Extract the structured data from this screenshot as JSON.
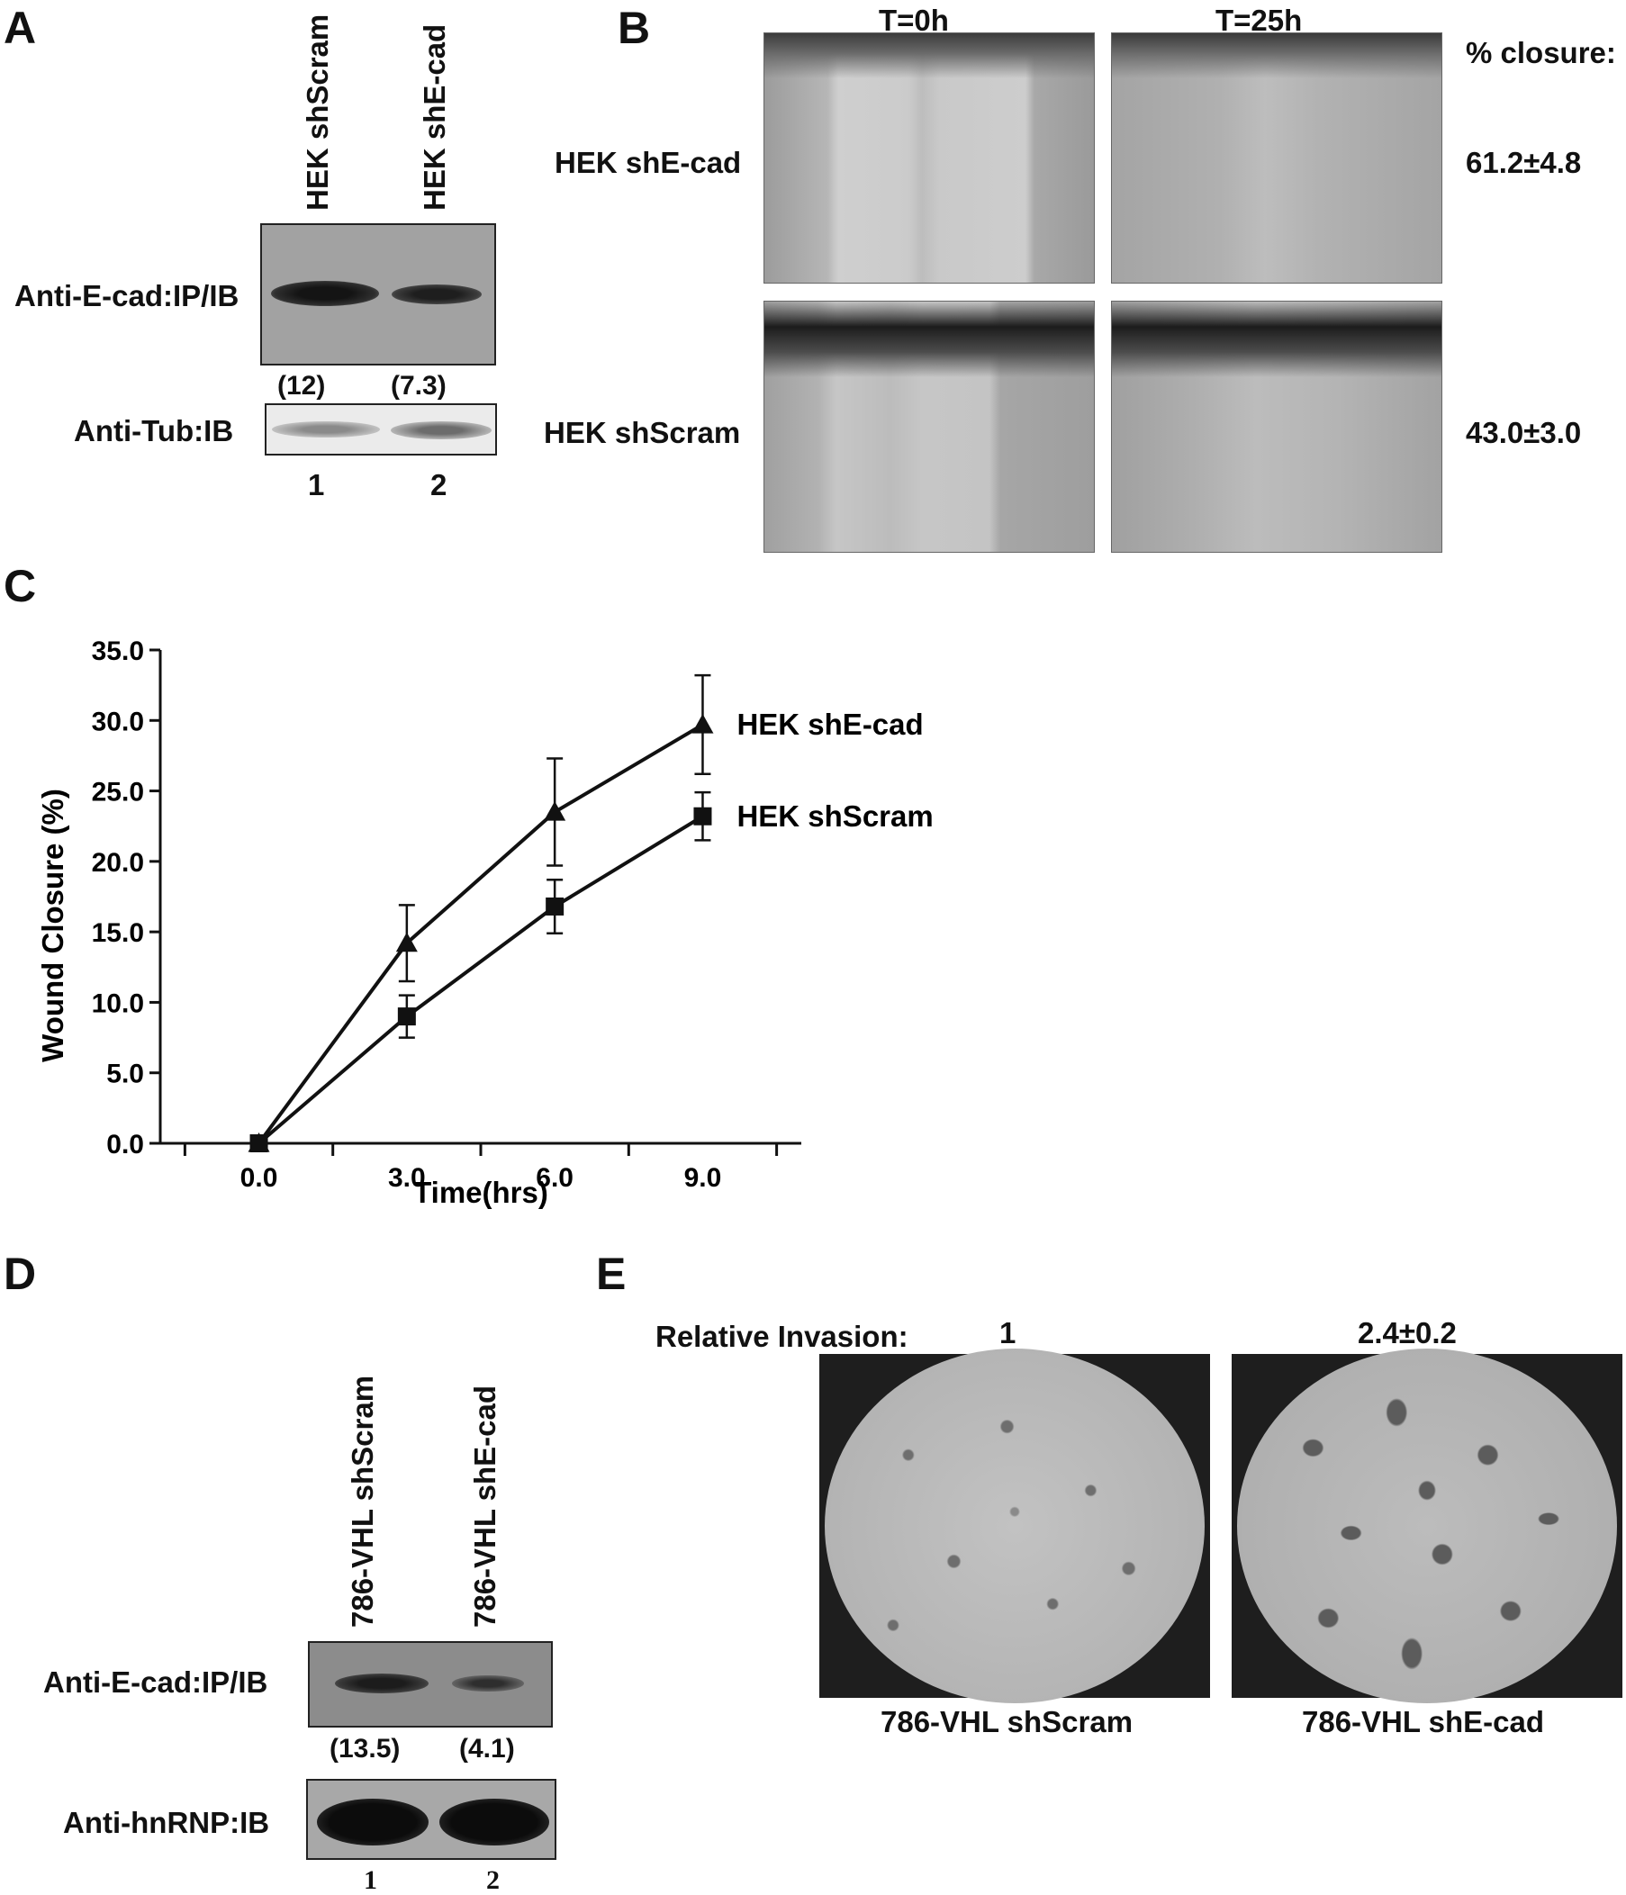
{
  "panels": {
    "a": "A",
    "b": "B",
    "c": "C",
    "d": "D",
    "e": "E"
  },
  "panel_a": {
    "lanes": [
      "HEK shScram",
      "HEK shE-cad"
    ],
    "blot1_label": "Anti-E-cad:IP/IB",
    "quant": [
      "(12)",
      "(7.3)"
    ],
    "blot2_label": "Anti-Tub:IB",
    "lane_numbers": [
      "1",
      "2"
    ]
  },
  "panel_b": {
    "time_headers": [
      "T=0h",
      "T=25h"
    ],
    "closure_header": "% closure:",
    "rows": [
      {
        "label": "HEK shE-cad",
        "closure": "61.2±4.8"
      },
      {
        "label": "HEK shScram",
        "closure": "43.0±3.0"
      }
    ]
  },
  "chart_data": {
    "type": "line",
    "xlabel": "Time(hrs)",
    "ylabel": "Wound Closure (%)",
    "x": [
      0.0,
      3.0,
      6.0,
      9.0
    ],
    "x_tick_labels": [
      "0.0",
      "3.0",
      "6.0",
      "9.0"
    ],
    "xlim": [
      -2.0,
      11.0
    ],
    "ylim": [
      0,
      35
    ],
    "y_ticks": [
      0,
      5,
      10,
      15,
      20,
      25,
      30,
      35
    ],
    "y_tick_labels": [
      "0.0",
      "5.0",
      "10.0",
      "15.0",
      "20.0",
      "25.0",
      "30.0",
      "35.0"
    ],
    "grid": false,
    "legend": "direct-labels-right",
    "series": [
      {
        "name": "HEK shE-cad",
        "marker": "triangle",
        "values": [
          0.0,
          14.2,
          23.5,
          29.7
        ],
        "errors": [
          0.0,
          2.7,
          3.8,
          3.5
        ]
      },
      {
        "name": "HEK shScram",
        "marker": "square",
        "values": [
          0.0,
          9.0,
          16.8,
          23.2
        ],
        "errors": [
          0.0,
          1.5,
          1.9,
          1.7
        ]
      }
    ]
  },
  "panel_d": {
    "lanes": [
      "786-VHL shScram",
      "786-VHL shE-cad"
    ],
    "blot1_label": "Anti-E-cad:IP/IB",
    "quant": [
      "(13.5)",
      "(4.1)"
    ],
    "blot2_label": "Anti-hnRNP:IB",
    "lane_numbers": [
      "1",
      "2"
    ]
  },
  "panel_e": {
    "header": "Relative Invasion:",
    "values": [
      "1",
      "2.4±0.2"
    ],
    "captions": [
      "786-VHL shScram",
      "786-VHL shE-cad"
    ]
  }
}
